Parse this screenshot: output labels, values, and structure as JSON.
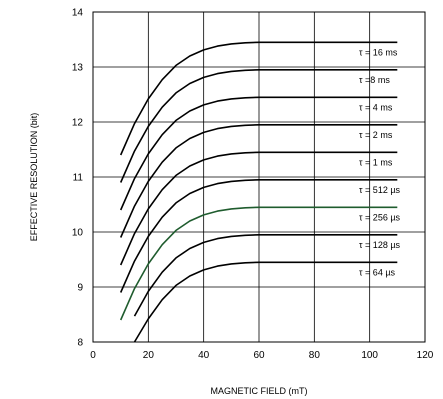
{
  "chart_data": {
    "type": "line",
    "xlabel": "MAGNETIC FIELD (mT)",
    "ylabel": "EFFECTIVE RESOLUTION (bit)",
    "xlim": [
      0,
      120
    ],
    "ylim": [
      8,
      14
    ],
    "xticks": [
      "0",
      "20",
      "40",
      "60",
      "80",
      "100",
      "120"
    ],
    "yticks": [
      "8",
      "9",
      "10",
      "11",
      "12",
      "13",
      "14"
    ],
    "grid": true,
    "highlight_color": "#1f5c2e",
    "line_color": "#000000",
    "x": [
      10,
      15,
      20,
      25,
      30,
      35,
      40,
      45,
      50,
      55,
      60,
      65,
      70,
      80,
      90,
      100,
      110
    ],
    "series": [
      {
        "name": "τ = 16 ms",
        "label": "τ = 16 ms",
        "values": [
          11.4,
          11.97,
          12.42,
          12.77,
          13.03,
          13.2,
          13.31,
          13.38,
          13.42,
          13.44,
          13.45,
          13.45,
          13.45,
          13.45,
          13.45,
          13.45,
          13.45
        ]
      },
      {
        "name": "τ =8 ms",
        "label": "τ =8 ms",
        "values": [
          10.9,
          11.47,
          11.92,
          12.27,
          12.53,
          12.7,
          12.81,
          12.88,
          12.92,
          12.94,
          12.95,
          12.95,
          12.95,
          12.95,
          12.95,
          12.95,
          12.95
        ]
      },
      {
        "name": "τ = 4 ms",
        "label": "τ = 4 ms",
        "values": [
          10.4,
          10.97,
          11.42,
          11.77,
          12.03,
          12.2,
          12.31,
          12.38,
          12.42,
          12.44,
          12.45,
          12.45,
          12.45,
          12.45,
          12.45,
          12.45,
          12.45
        ]
      },
      {
        "name": "τ = 2 ms",
        "label": "τ = 2 ms",
        "values": [
          9.9,
          10.47,
          10.92,
          11.27,
          11.53,
          11.7,
          11.81,
          11.88,
          11.92,
          11.94,
          11.95,
          11.95,
          11.95,
          11.95,
          11.95,
          11.95,
          11.95
        ]
      },
      {
        "name": "τ = 1 ms",
        "label": "τ = 1 ms",
        "values": [
          9.4,
          9.97,
          10.42,
          10.77,
          11.03,
          11.2,
          11.31,
          11.38,
          11.42,
          11.44,
          11.45,
          11.45,
          11.45,
          11.45,
          11.45,
          11.45,
          11.45
        ]
      },
      {
        "name": "τ = 512 µs",
        "label": "τ = 512 µs",
        "values": [
          8.9,
          9.47,
          9.92,
          10.27,
          10.53,
          10.7,
          10.81,
          10.88,
          10.92,
          10.94,
          10.95,
          10.95,
          10.95,
          10.95,
          10.95,
          10.95,
          10.95
        ]
      },
      {
        "name": "τ = 256 µs",
        "label": "τ = 256 µs",
        "highlight": true,
        "values": [
          8.4,
          8.97,
          9.42,
          9.77,
          10.03,
          10.2,
          10.31,
          10.38,
          10.42,
          10.44,
          10.45,
          10.45,
          10.45,
          10.45,
          10.45,
          10.45,
          10.45
        ]
      },
      {
        "name": "τ = 128 µs",
        "label": "τ = 128 µs",
        "values": [
          null,
          8.47,
          8.92,
          9.27,
          9.53,
          9.7,
          9.81,
          9.88,
          9.92,
          9.94,
          9.95,
          9.95,
          9.95,
          9.95,
          9.95,
          9.95,
          9.95
        ]
      },
      {
        "name": "τ = 64 µs",
        "label": "τ = 64 µs",
        "values": [
          null,
          8.0,
          8.42,
          8.77,
          9.03,
          9.2,
          9.31,
          9.38,
          9.42,
          9.44,
          9.45,
          9.45,
          9.45,
          9.45,
          9.45,
          9.45,
          9.45
        ]
      }
    ]
  }
}
